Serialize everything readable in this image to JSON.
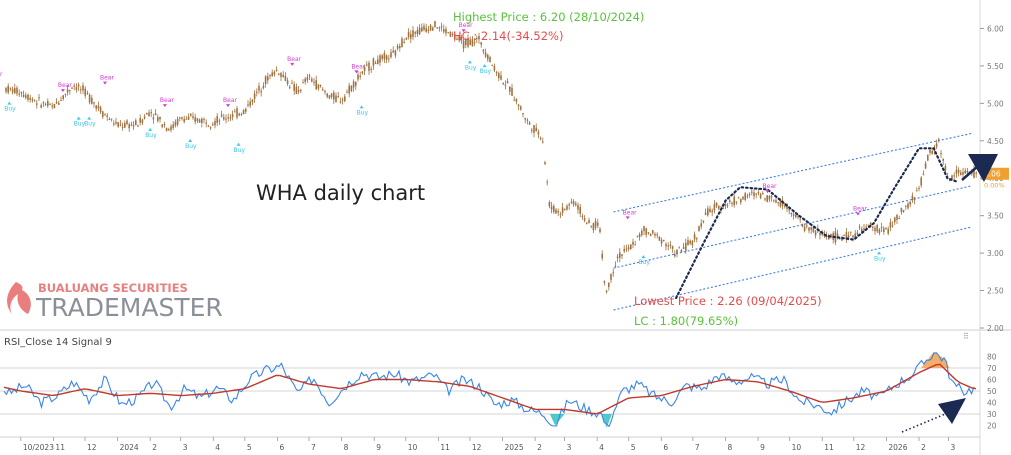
{
  "chart_data": [
    {
      "type": "candlestick",
      "title": "WHA daily chart",
      "ylim": [
        2.0,
        6.3
      ],
      "y_ticks": [
        "2.00",
        "2.50",
        "3.00",
        "3.50",
        "4.00",
        "4.50",
        "5.00",
        "5.50",
        "6.00"
      ],
      "last_price_label": "4.06",
      "last_change_label": "0.00%",
      "price_series": [
        [
          "2023-09-01",
          5.25
        ],
        [
          "2023-10-01",
          5.15
        ],
        [
          "2023-10-20",
          5.0
        ],
        [
          "2023-11-01",
          4.95
        ],
        [
          "2023-11-20",
          5.25
        ],
        [
          "2023-12-01",
          5.15
        ],
        [
          "2023-12-20",
          4.85
        ],
        [
          "2024-01-01",
          4.7
        ],
        [
          "2024-01-20",
          4.72
        ],
        [
          "2024-02-01",
          4.9
        ],
        [
          "2024-02-20",
          4.65
        ],
        [
          "2024-03-01",
          4.8
        ],
        [
          "2024-03-20",
          4.78
        ],
        [
          "2024-04-01",
          4.75
        ],
        [
          "2024-04-20",
          4.85
        ],
        [
          "2024-05-01",
          4.9
        ],
        [
          "2024-05-20",
          5.3
        ],
        [
          "2024-06-01",
          5.45
        ],
        [
          "2024-06-20",
          5.15
        ],
        [
          "2024-07-01",
          5.35
        ],
        [
          "2024-07-20",
          5.1
        ],
        [
          "2024-08-01",
          5.05
        ],
        [
          "2024-08-20",
          5.4
        ],
        [
          "2024-09-01",
          5.55
        ],
        [
          "2024-09-20",
          5.65
        ],
        [
          "2024-10-01",
          5.9
        ],
        [
          "2024-10-28",
          6.05
        ],
        [
          "2024-11-10",
          5.95
        ],
        [
          "2024-11-25",
          5.8
        ],
        [
          "2024-12-10",
          5.85
        ],
        [
          "2024-12-25",
          5.45
        ],
        [
          "2025-01-10",
          5.15
        ],
        [
          "2025-01-25",
          4.75
        ],
        [
          "2025-02-08",
          4.55
        ],
        [
          "2025-02-15",
          3.6
        ],
        [
          "2025-02-25",
          3.55
        ],
        [
          "2025-03-10",
          3.7
        ],
        [
          "2025-03-25",
          3.35
        ],
        [
          "2025-04-03",
          3.4
        ],
        [
          "2025-04-09",
          2.45
        ],
        [
          "2025-04-20",
          2.95
        ],
        [
          "2025-05-01",
          3.05
        ],
        [
          "2025-05-15",
          3.3
        ],
        [
          "2025-06-01",
          3.2
        ],
        [
          "2025-06-15",
          3.0
        ],
        [
          "2025-07-01",
          3.15
        ],
        [
          "2025-07-15",
          3.55
        ],
        [
          "2025-08-01",
          3.65
        ],
        [
          "2025-08-20",
          3.75
        ],
        [
          "2025-09-01",
          3.8
        ],
        [
          "2025-09-20",
          3.7
        ],
        [
          "2025-10-01",
          3.6
        ],
        [
          "2025-10-15",
          3.35
        ],
        [
          "2025-11-01",
          3.25
        ],
        [
          "2025-11-20",
          3.2
        ],
        [
          "2025-12-01",
          3.25
        ],
        [
          "2025-12-15",
          3.35
        ],
        [
          "2026-01-01",
          3.3
        ],
        [
          "2026-01-20",
          3.6
        ],
        [
          "2026-02-01",
          3.85
        ],
        [
          "2026-02-10",
          4.3
        ],
        [
          "2026-02-20",
          4.5
        ],
        [
          "2026-03-01",
          3.95
        ],
        [
          "2026-03-10",
          4.1
        ],
        [
          "2026-03-20",
          4.06
        ]
      ],
      "signals": [
        {
          "label": "Bear",
          "kind": "bear",
          "date": "2023-09-05",
          "price": 5.3
        },
        {
          "label": "Buy",
          "kind": "buy",
          "date": "2023-09-20",
          "price": 5.05
        },
        {
          "label": "Bear",
          "kind": "bear",
          "date": "2023-11-10",
          "price": 5.15
        },
        {
          "label": "Buy",
          "kind": "buy",
          "date": "2023-11-25",
          "price": 4.85
        },
        {
          "label": "Buy",
          "kind": "buy",
          "date": "2023-12-05",
          "price": 4.85
        },
        {
          "label": "Bear",
          "kind": "bear",
          "date": "2023-12-20",
          "price": 5.25
        },
        {
          "label": "Buy",
          "kind": "buy",
          "date": "2024-02-01",
          "price": 4.7
        },
        {
          "label": "Bear",
          "kind": "bear",
          "date": "2024-02-15",
          "price": 4.95
        },
        {
          "label": "Buy",
          "kind": "buy",
          "date": "2024-03-10",
          "price": 4.55
        },
        {
          "label": "Bear",
          "kind": "bear",
          "date": "2024-04-15",
          "price": 4.95
        },
        {
          "label": "Buy",
          "kind": "buy",
          "date": "2024-04-25",
          "price": 4.5
        },
        {
          "label": "Bear",
          "kind": "bear",
          "date": "2024-06-15",
          "price": 5.5
        },
        {
          "label": "Bear",
          "kind": "bear",
          "date": "2024-08-15",
          "price": 5.4
        },
        {
          "label": "Buy",
          "kind": "buy",
          "date": "2024-08-20",
          "price": 5.0
        },
        {
          "label": "Bear",
          "kind": "bear",
          "date": "2024-11-25",
          "price": 5.95
        },
        {
          "label": "Buy",
          "kind": "buy",
          "date": "2024-12-01",
          "price": 5.6
        },
        {
          "label": "Buy",
          "kind": "buy",
          "date": "2024-12-15",
          "price": 5.55
        },
        {
          "label": "Bear",
          "kind": "bear",
          "date": "2025-04-30",
          "price": 3.45
        },
        {
          "label": "Buy",
          "kind": "buy",
          "date": "2025-05-15",
          "price": 3.0
        },
        {
          "label": "Bear",
          "kind": "bear",
          "date": "2025-09-10",
          "price": 3.8
        },
        {
          "label": "Bear",
          "kind": "bear",
          "date": "2025-12-05",
          "price": 3.5
        },
        {
          "label": "Buy",
          "kind": "buy",
          "date": "2025-12-25",
          "price": 3.05
        }
      ],
      "annotations": {
        "highest": {
          "text": "Highest Price : 6.20 (28/10/2024)",
          "date": "2024-10-28",
          "price": 6.2
        },
        "hc": {
          "text": "HC : 2.14(-34.52%)"
        },
        "lowest": {
          "text": "Lowest Price : 2.26 (09/04/2025)",
          "date": "2025-04-09",
          "price": 2.26
        },
        "lc": {
          "text": "LC : 1.80(79.65%)"
        }
      },
      "channel": {
        "start": "2025-04-09",
        "end": "2026-03-31",
        "upper": [
          3.55,
          4.6
        ],
        "middle": [
          2.8,
          3.9
        ],
        "lower": [
          2.24,
          3.35
        ]
      },
      "arc_path": [
        [
          "2025-06-15",
          2.4
        ],
        [
          "2025-07-10",
          3.1
        ],
        [
          "2025-08-01",
          3.7
        ],
        [
          "2025-08-15",
          3.88
        ],
        [
          "2025-09-10",
          3.85
        ],
        [
          "2025-10-10",
          3.5
        ],
        [
          "2025-11-05",
          3.23
        ],
        [
          "2025-12-01",
          3.18
        ],
        [
          "2025-12-20",
          3.4
        ],
        [
          "2026-01-10",
          3.9
        ],
        [
          "2026-02-01",
          4.4
        ],
        [
          "2026-02-15",
          4.4
        ],
        [
          "2026-02-28",
          4.0
        ],
        [
          "2026-03-10",
          3.95
        ]
      ]
    },
    {
      "type": "line",
      "title": "RSI_Close 14 Signal 9",
      "ylim": [
        10,
        90
      ],
      "y_ticks": [
        "20",
        "30",
        "40",
        "50",
        "60",
        "70",
        "80"
      ],
      "x_ticks": [
        "10/2023",
        "11",
        "12",
        "2024",
        "2",
        "3",
        "4",
        "5",
        "6",
        "7",
        "8",
        "9",
        "10",
        "11",
        "12",
        "2025",
        "2",
        "3",
        "4",
        "5",
        "6",
        "7",
        "8",
        "9",
        "10",
        "11",
        "12",
        "2026",
        "2",
        "3"
      ],
      "series": [
        {
          "name": "RSI",
          "color": "#3a86e8",
          "values": [
            [
              "2023-09-01",
              60
            ],
            [
              "2023-09-20",
              48
            ],
            [
              "2023-10-05",
              55
            ],
            [
              "2023-10-20",
              40
            ],
            [
              "2023-11-05",
              46
            ],
            [
              "2023-11-20",
              58
            ],
            [
              "2023-12-05",
              43
            ],
            [
              "2023-12-20",
              60
            ],
            [
              "2024-01-05",
              38
            ],
            [
              "2024-01-20",
              44
            ],
            [
              "2024-02-05",
              58
            ],
            [
              "2024-02-20",
              36
            ],
            [
              "2024-03-05",
              52
            ],
            [
              "2024-03-20",
              44
            ],
            [
              "2024-04-05",
              53
            ],
            [
              "2024-04-20",
              42
            ],
            [
              "2024-05-05",
              60
            ],
            [
              "2024-05-20",
              68
            ],
            [
              "2024-06-05",
              72
            ],
            [
              "2024-06-20",
              48
            ],
            [
              "2024-07-05",
              62
            ],
            [
              "2024-07-20",
              40
            ],
            [
              "2024-08-05",
              55
            ],
            [
              "2024-08-20",
              66
            ],
            [
              "2024-09-05",
              62
            ],
            [
              "2024-09-20",
              65
            ],
            [
              "2024-10-05",
              58
            ],
            [
              "2024-10-28",
              64
            ],
            [
              "2024-11-10",
              50
            ],
            [
              "2024-11-25",
              60
            ],
            [
              "2024-12-10",
              54
            ],
            [
              "2024-12-25",
              38
            ],
            [
              "2025-01-10",
              42
            ],
            [
              "2025-01-25",
              34
            ],
            [
              "2025-02-10",
              30
            ],
            [
              "2025-02-20",
              20
            ],
            [
              "2025-03-05",
              42
            ],
            [
              "2025-03-20",
              35
            ],
            [
              "2025-04-05",
              30
            ],
            [
              "2025-04-10",
              18
            ],
            [
              "2025-04-25",
              50
            ],
            [
              "2025-05-10",
              56
            ],
            [
              "2025-05-25",
              46
            ],
            [
              "2025-06-10",
              40
            ],
            [
              "2025-06-25",
              55
            ],
            [
              "2025-07-10",
              52
            ],
            [
              "2025-07-25",
              64
            ],
            [
              "2025-08-10",
              58
            ],
            [
              "2025-08-25",
              62
            ],
            [
              "2025-09-10",
              56
            ],
            [
              "2025-09-25",
              60
            ],
            [
              "2025-10-10",
              42
            ],
            [
              "2025-10-25",
              38
            ],
            [
              "2025-11-10",
              32
            ],
            [
              "2025-11-25",
              42
            ],
            [
              "2025-12-10",
              50
            ],
            [
              "2025-12-25",
              44
            ],
            [
              "2026-01-10",
              56
            ],
            [
              "2026-01-25",
              64
            ],
            [
              "2026-02-05",
              74
            ],
            [
              "2026-02-15",
              84
            ],
            [
              "2026-02-25",
              78
            ],
            [
              "2026-03-05",
              56
            ],
            [
              "2026-03-15",
              50
            ],
            [
              "2026-03-25",
              52
            ]
          ]
        },
        {
          "name": "Signal",
          "color": "#c0392b",
          "values": [
            [
              "2023-09-01",
              56
            ],
            [
              "2023-10-01",
              50
            ],
            [
              "2023-11-01",
              46
            ],
            [
              "2023-12-01",
              52
            ],
            [
              "2024-01-01",
              46
            ],
            [
              "2024-02-01",
              48
            ],
            [
              "2024-03-01",
              46
            ],
            [
              "2024-04-01",
              48
            ],
            [
              "2024-05-01",
              52
            ],
            [
              "2024-06-01",
              64
            ],
            [
              "2024-07-01",
              56
            ],
            [
              "2024-08-01",
              52
            ],
            [
              "2024-09-01",
              60
            ],
            [
              "2024-10-01",
              60
            ],
            [
              "2024-11-01",
              58
            ],
            [
              "2024-12-01",
              54
            ],
            [
              "2025-01-01",
              44
            ],
            [
              "2025-02-01",
              34
            ],
            [
              "2025-03-01",
              34
            ],
            [
              "2025-04-01",
              30
            ],
            [
              "2025-05-01",
              44
            ],
            [
              "2025-06-01",
              46
            ],
            [
              "2025-07-01",
              54
            ],
            [
              "2025-08-01",
              60
            ],
            [
              "2025-09-01",
              58
            ],
            [
              "2025-10-01",
              50
            ],
            [
              "2025-11-01",
              40
            ],
            [
              "2025-12-01",
              44
            ],
            [
              "2026-01-01",
              50
            ],
            [
              "2026-02-01",
              66
            ],
            [
              "2026-02-20",
              74
            ],
            [
              "2026-03-10",
              58
            ],
            [
              "2026-03-25",
              52
            ]
          ]
        }
      ]
    }
  ],
  "overlay": {
    "logo_brand": "BUALUANG SECURITIES",
    "logo_product": "TRADEMASTER",
    "arrow_color": "#1a2a52",
    "colors": {
      "candle": "#a0703d",
      "channel": "#3a7ee8",
      "bear_tag": "#d63ad6",
      "buy_tag": "#3ac8e8",
      "highest_text": "#58c33a",
      "hc_text": "#e84a4a",
      "lowest_text": "#e84a4a",
      "lc_text": "#58c33a",
      "price_badge": "#f0a030",
      "rsi_fill_over": "#f0a050",
      "rsi_fill_under": "#30c0c0"
    }
  }
}
